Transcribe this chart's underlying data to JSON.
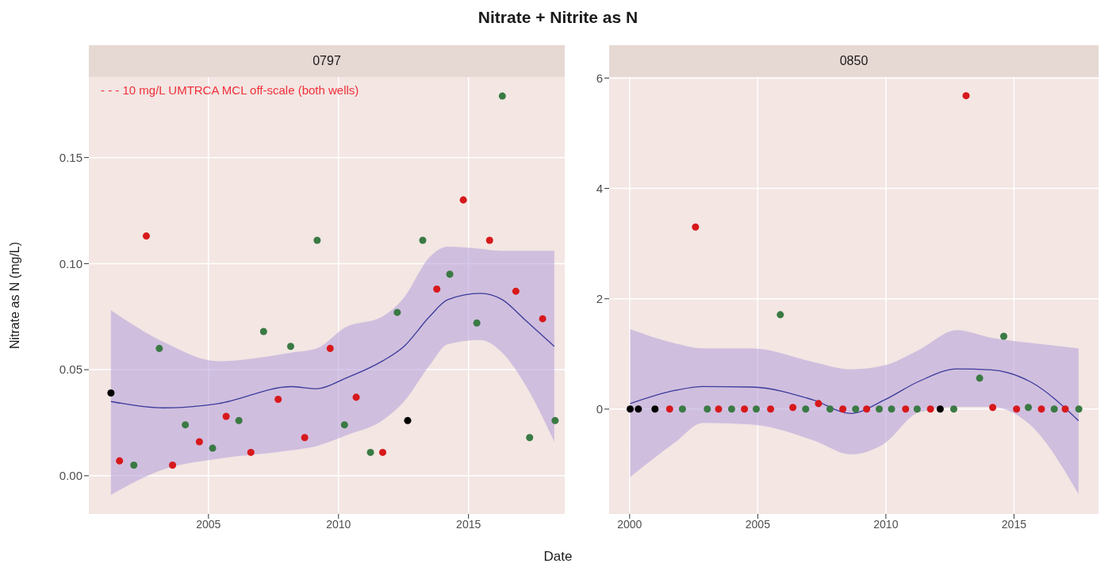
{
  "chart_data": [
    {
      "type": "scatter",
      "title": "Nitrate + Nitrite as N",
      "subtitle": "0797",
      "xlabel": "Date",
      "ylabel": "Nitrate as N (mg/L)",
      "annotations": [
        "- - - 10 mg/L UMTRCA MCL off-scale (both wells)"
      ],
      "xlim": [
        2000.4,
        2018.7
      ],
      "xticks": [
        2005,
        2010,
        2015
      ],
      "ylim": [
        -0.018,
        0.188
      ],
      "yticks": [
        {
          "value": 0,
          "label": "0.00"
        },
        {
          "value": 0.05,
          "label": "0.05"
        },
        {
          "value": 0.1,
          "label": "0.10"
        },
        {
          "value": 0.15,
          "label": "0.15"
        }
      ],
      "grid": true,
      "marker": "circle",
      "series": [
        {
          "type": "line",
          "marker": "none",
          "color": "#3b3b9b",
          "x": [
            2001.25,
            2003.28,
            2005.38,
            2008.18,
            2009.16,
            2010.28,
            2011.68,
            2012.52,
            2013.5,
            2014.2,
            2015.46,
            2016.3,
            2017.13,
            2018.3
          ],
          "values": [
            0.035,
            0.032,
            0.034,
            0.042,
            0.041,
            0.046,
            0.054,
            0.061,
            0.075,
            0.083,
            0.086,
            0.083,
            0.074,
            0.061
          ],
          "lower": [
            -0.009,
            0.003,
            0.008,
            0.012,
            0.014,
            0.019,
            0.026,
            0.035,
            0.052,
            0.062,
            0.064,
            0.058,
            0.044,
            0.016
          ],
          "upper": [
            0.078,
            0.063,
            0.054,
            0.058,
            0.06,
            0.07,
            0.075,
            0.084,
            0.103,
            0.108,
            0.107,
            0.106,
            0.106,
            0.106
          ]
        },
        {
          "color": "#d7191c",
          "x": [
            2001.58,
            2002.61,
            2003.62,
            2004.65,
            2005.68,
            2006.63,
            2007.68,
            2008.7,
            2009.68,
            2010.68,
            2011.7,
            2013.78,
            2014.8,
            2015.81,
            2016.82,
            2017.85
          ],
          "values": [
            0.007,
            0.113,
            0.005,
            0.016,
            0.028,
            0.011,
            0.036,
            0.018,
            0.06,
            0.037,
            0.011,
            0.088,
            0.13,
            0.111,
            0.087,
            0.074
          ]
        },
        {
          "color": "#3a7a44",
          "x": [
            2002.13,
            2003.11,
            2004.11,
            2005.16,
            2006.17,
            2007.12,
            2008.16,
            2009.18,
            2010.23,
            2011.23,
            2012.26,
            2013.24,
            2014.28,
            2015.32,
            2016.3,
            2017.35,
            2018.33
          ],
          "values": [
            0.005,
            0.06,
            0.024,
            0.013,
            0.026,
            0.068,
            0.061,
            0.111,
            0.024,
            0.011,
            0.077,
            0.111,
            0.095,
            0.072,
            0.179,
            0.018,
            0.026
          ]
        },
        {
          "color": "#000000",
          "x": [
            2001.25,
            2012.66
          ],
          "values": [
            0.039,
            0.026
          ]
        }
      ]
    },
    {
      "type": "scatter",
      "subtitle": "0850",
      "xlim": [
        1999.2,
        2018.3
      ],
      "xticks": [
        2000,
        2005,
        2010,
        2015
      ],
      "ylim": [
        -1.9,
        6.02
      ],
      "yticks": [
        0,
        2,
        4,
        6
      ],
      "grid": true,
      "marker": "circle",
      "series": [
        {
          "type": "line",
          "marker": "none",
          "color": "#3b3b9b",
          "x": [
            2000.02,
            2001.78,
            2002.86,
            2004.76,
            2007.2,
            2008.63,
            2009.92,
            2011.28,
            2012.77,
            2014.12,
            2015.62,
            2017.52
          ],
          "values": [
            0.1,
            0.34,
            0.41,
            0.4,
            0.16,
            -0.08,
            0.16,
            0.5,
            0.73,
            0.71,
            0.5,
            -0.21
          ],
          "lower": [
            -1.23,
            -0.6,
            -0.25,
            -0.28,
            -0.57,
            -0.82,
            -0.63,
            -0.06,
            0.04,
            0.04,
            -0.28,
            -1.54
          ],
          "upper": [
            1.45,
            1.19,
            1.1,
            1.1,
            0.85,
            0.72,
            0.79,
            1.07,
            1.43,
            1.29,
            1.2,
            1.1
          ]
        },
        {
          "color": "#d7191c",
          "x": [
            2001.56,
            2002.57,
            2003.47,
            2004.48,
            2005.5,
            2006.37,
            2007.37,
            2008.32,
            2009.25,
            2010.77,
            2011.74,
            2013.13,
            2014.17,
            2015.1,
            2016.07,
            2017.0
          ],
          "values": [
            0,
            3.3,
            0,
            0,
            0,
            0.03,
            0.1,
            0,
            0,
            0,
            0,
            5.68,
            0.03,
            0,
            0,
            0
          ]
        },
        {
          "color": "#3a7a44",
          "x": [
            2002.06,
            2003.03,
            2003.98,
            2004.94,
            2005.88,
            2006.87,
            2007.82,
            2008.82,
            2009.74,
            2010.22,
            2011.22,
            2012.65,
            2013.66,
            2014.6,
            2015.56,
            2016.57,
            2017.53
          ],
          "values": [
            0,
            0,
            0,
            0,
            1.71,
            0,
            0,
            0,
            0,
            0,
            0,
            0,
            0.56,
            1.32,
            0.03,
            0,
            0
          ]
        },
        {
          "color": "#000000",
          "x": [
            2000.02,
            2000.34,
            2000.99,
            2012.12
          ],
          "values": [
            0,
            0,
            0,
            0
          ]
        }
      ]
    }
  ]
}
